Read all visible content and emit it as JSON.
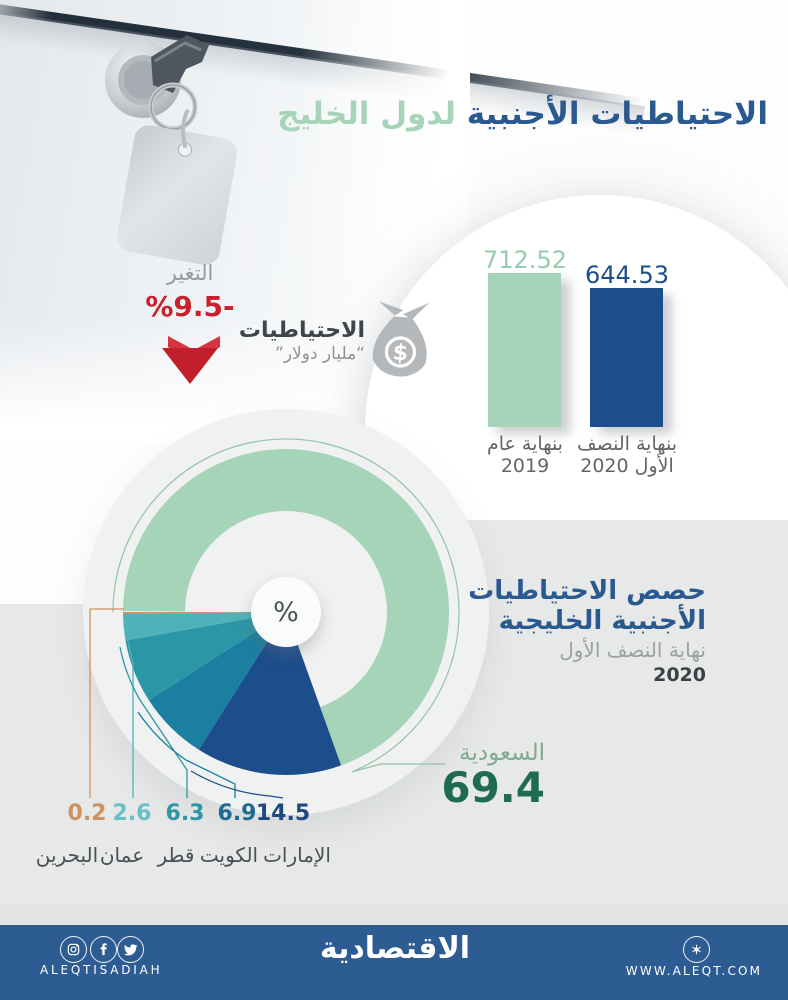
{
  "header": {
    "title_blue": "الاحتياطيات الأجنبية",
    "title_green": "لدول الخليج",
    "title_blue_color": "#2a5990",
    "title_green_color": "#a7d4b8"
  },
  "change_block": {
    "label": "التغير",
    "value": "%9.5-",
    "value_color": "#c8202c",
    "arrow_icon": "double-down-arrow"
  },
  "reserves_block": {
    "title": "الاحتياطيات",
    "unit": "“مليار دولار”",
    "icon": "money-bag",
    "icon_color": "#b5b8bb"
  },
  "pie_block": {
    "title_line1": "حصص الاحتياطيات",
    "title_line2": "الأجنبية الخليجية",
    "subtitle": "نهاية النصف الأول",
    "year": "2020",
    "center_symbol": "%"
  },
  "saudi_callout": {
    "label": "السعودية",
    "value": 69.4,
    "label_color": "#7fab90",
    "value_color": "#1f6b50"
  },
  "footer": {
    "brand": "ALEQTISADIAH",
    "logo": "الاقتصادية",
    "website": "WWW.ALEQT.COM",
    "bg_color": "#2d5c93",
    "icons": [
      "instagram-icon",
      "facebook-icon",
      "twitter-icon",
      "globe-icon"
    ]
  },
  "chart_data": [
    {
      "type": "bar",
      "categories": [
        [
          "بنهاية عام",
          "2019"
        ],
        [
          "بنهاية النصف",
          "الأول 2020"
        ]
      ],
      "values": [
        712.52,
        644.53
      ],
      "colors": [
        "#a6d4b9",
        "#1d4e8c"
      ],
      "value_colors": [
        "#97ccae",
        "#1d4e8c"
      ],
      "ylabel": "مليار دولار",
      "ylim": [
        0,
        712.52
      ],
      "grid": false,
      "legend": false
    },
    {
      "type": "pie",
      "unit": "%",
      "legend": false,
      "slices": [
        {
          "label": "البحرين",
          "value": 0.2,
          "color": "#cd9261",
          "label_color": "#cd9261"
        },
        {
          "label": "عمان",
          "value": 2.6,
          "color": "#4fb2bb",
          "label_color": "#67c0c7"
        },
        {
          "label": "قطر",
          "value": 6.3,
          "color": "#2b97a6",
          "label_color": "#2b97a6"
        },
        {
          "label": "الكويت",
          "value": 6.9,
          "color": "#1a7fa0",
          "label_color": "#1d6a92"
        },
        {
          "label": "الإمارات",
          "value": 14.5,
          "color": "#1d4e8c",
          "label_color": "#1d4a7e"
        },
        {
          "label": "السعودية",
          "value": 69.4,
          "color": "#a6d4b9",
          "ring": true,
          "label_color": "#7fab90",
          "value_color": "#1f6b50"
        }
      ]
    }
  ]
}
